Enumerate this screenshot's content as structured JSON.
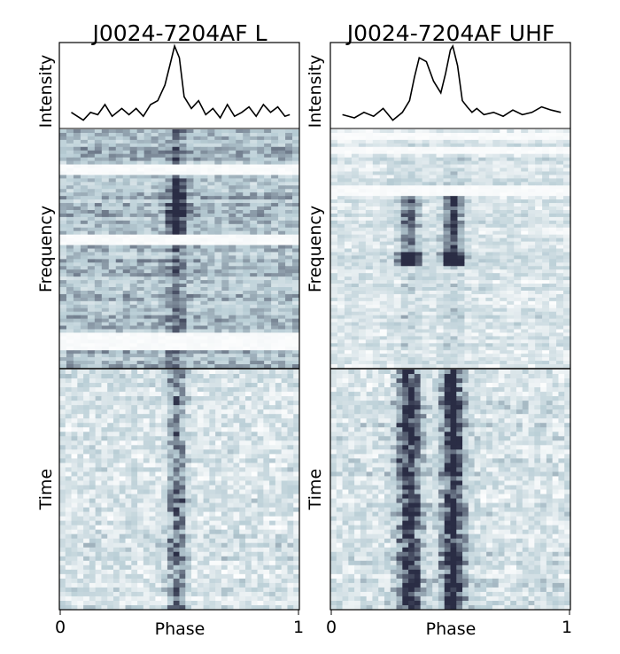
{
  "colors": {
    "light": "#ffffff",
    "mid": "#b9ced6",
    "dark": "#2a2d45",
    "line": "#000000"
  },
  "chart_data": [
    {
      "type": "heatmap",
      "title": "J0024-7204AF L",
      "profile_label": "Intensity",
      "frequency_label": "Frequency",
      "time_label": "Time",
      "xlabel": "Phase",
      "xticks": [
        "0",
        "1"
      ],
      "xlim": [
        0,
        1
      ],
      "profile": {
        "x": [
          0.05,
          0.1,
          0.13,
          0.16,
          0.19,
          0.22,
          0.26,
          0.29,
          0.32,
          0.35,
          0.38,
          0.41,
          0.44,
          0.46,
          0.48,
          0.5,
          0.52,
          0.55,
          0.58,
          0.61,
          0.64,
          0.67,
          0.7,
          0.73,
          0.76,
          0.79,
          0.82,
          0.85,
          0.88,
          0.91,
          0.94,
          0.96
        ],
        "y": [
          0.15,
          0.05,
          0.15,
          0.12,
          0.25,
          0.1,
          0.2,
          0.12,
          0.2,
          0.1,
          0.25,
          0.3,
          0.5,
          0.75,
          1.0,
          0.85,
          0.35,
          0.2,
          0.3,
          0.12,
          0.2,
          0.08,
          0.25,
          0.1,
          0.15,
          0.22,
          0.1,
          0.25,
          0.15,
          0.22,
          0.1,
          0.12
        ]
      },
      "components": [
        {
          "phase": 0.49,
          "width": 0.025,
          "strength": 0.55
        }
      ],
      "frequency_gaps": [
        0.14,
        0.19,
        0.44,
        0.48,
        0.86,
        0.92
      ]
    },
    {
      "type": "heatmap",
      "title": "J0024-7204AF UHF",
      "profile_label": "Intensity",
      "frequency_label": "Frequency",
      "time_label": "Time",
      "xlabel": "Phase",
      "xticks": [
        "0",
        "1"
      ],
      "xlim": [
        0,
        1
      ],
      "profile": {
        "x": [
          0.05,
          0.1,
          0.14,
          0.18,
          0.22,
          0.26,
          0.3,
          0.33,
          0.35,
          0.37,
          0.4,
          0.43,
          0.46,
          0.48,
          0.5,
          0.51,
          0.53,
          0.55,
          0.57,
          0.59,
          0.61,
          0.64,
          0.68,
          0.72,
          0.76,
          0.8,
          0.84,
          0.88,
          0.92,
          0.96
        ],
        "y": [
          0.12,
          0.08,
          0.15,
          0.1,
          0.2,
          0.05,
          0.15,
          0.3,
          0.6,
          0.85,
          0.8,
          0.55,
          0.4,
          0.65,
          0.95,
          1.0,
          0.75,
          0.3,
          0.22,
          0.15,
          0.2,
          0.12,
          0.15,
          0.1,
          0.18,
          0.12,
          0.15,
          0.22,
          0.18,
          0.15
        ]
      },
      "components": [
        {
          "phase": 0.33,
          "width": 0.03,
          "strength": 0.75
        },
        {
          "phase": 0.51,
          "width": 0.028,
          "strength": 0.85
        }
      ],
      "frequency_gaps": [
        0.02,
        0.05,
        0.08,
        0.1,
        0.23,
        0.28
      ]
    }
  ]
}
